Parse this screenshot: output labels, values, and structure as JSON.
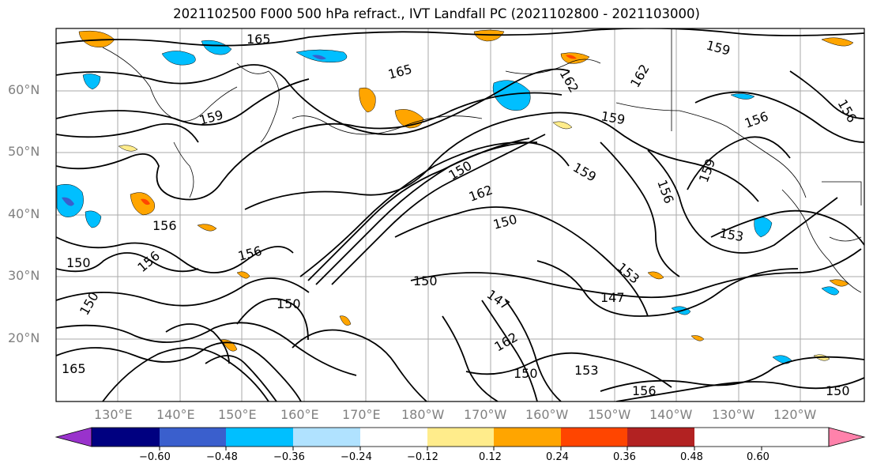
{
  "title": "2021102500 F000 500 hPa refract., IVT Landfall PC (2021102800 - 2021103000)",
  "lat_labels": [
    "60°N",
    "50°N",
    "40°N",
    "30°N",
    "20°N"
  ],
  "lon_labels": [
    "130°E",
    "140°E",
    "150°E",
    "160°E",
    "170°E",
    "180°W",
    "170°W",
    "160°W",
    "150°W",
    "140°W",
    "130°W",
    "120°W"
  ],
  "contour_labels": [
    "165",
    "165",
    "159",
    "159",
    "162",
    "162",
    "159",
    "156",
    "159",
    "150",
    "162",
    "156",
    "159",
    "150",
    "156",
    "150",
    "156",
    "150",
    "153",
    "147",
    "147",
    "153",
    "150",
    "150",
    "156",
    "162",
    "150",
    "153",
    "165",
    "156",
    "156",
    "150"
  ],
  "colorbar": {
    "ticks": [
      "−0.60",
      "−0.48",
      "−0.36",
      "−0.24",
      "−0.12",
      "0.12",
      "0.24",
      "0.36",
      "0.48",
      "0.60"
    ],
    "colors": [
      "#9932cc",
      "#000080",
      "#3a5fcd",
      "#00bfff",
      "#b0e2ff",
      "#ffffff",
      "#ffec8b",
      "#ffa500",
      "#ff4500",
      "#b22222",
      "#ff82ab"
    ]
  }
}
